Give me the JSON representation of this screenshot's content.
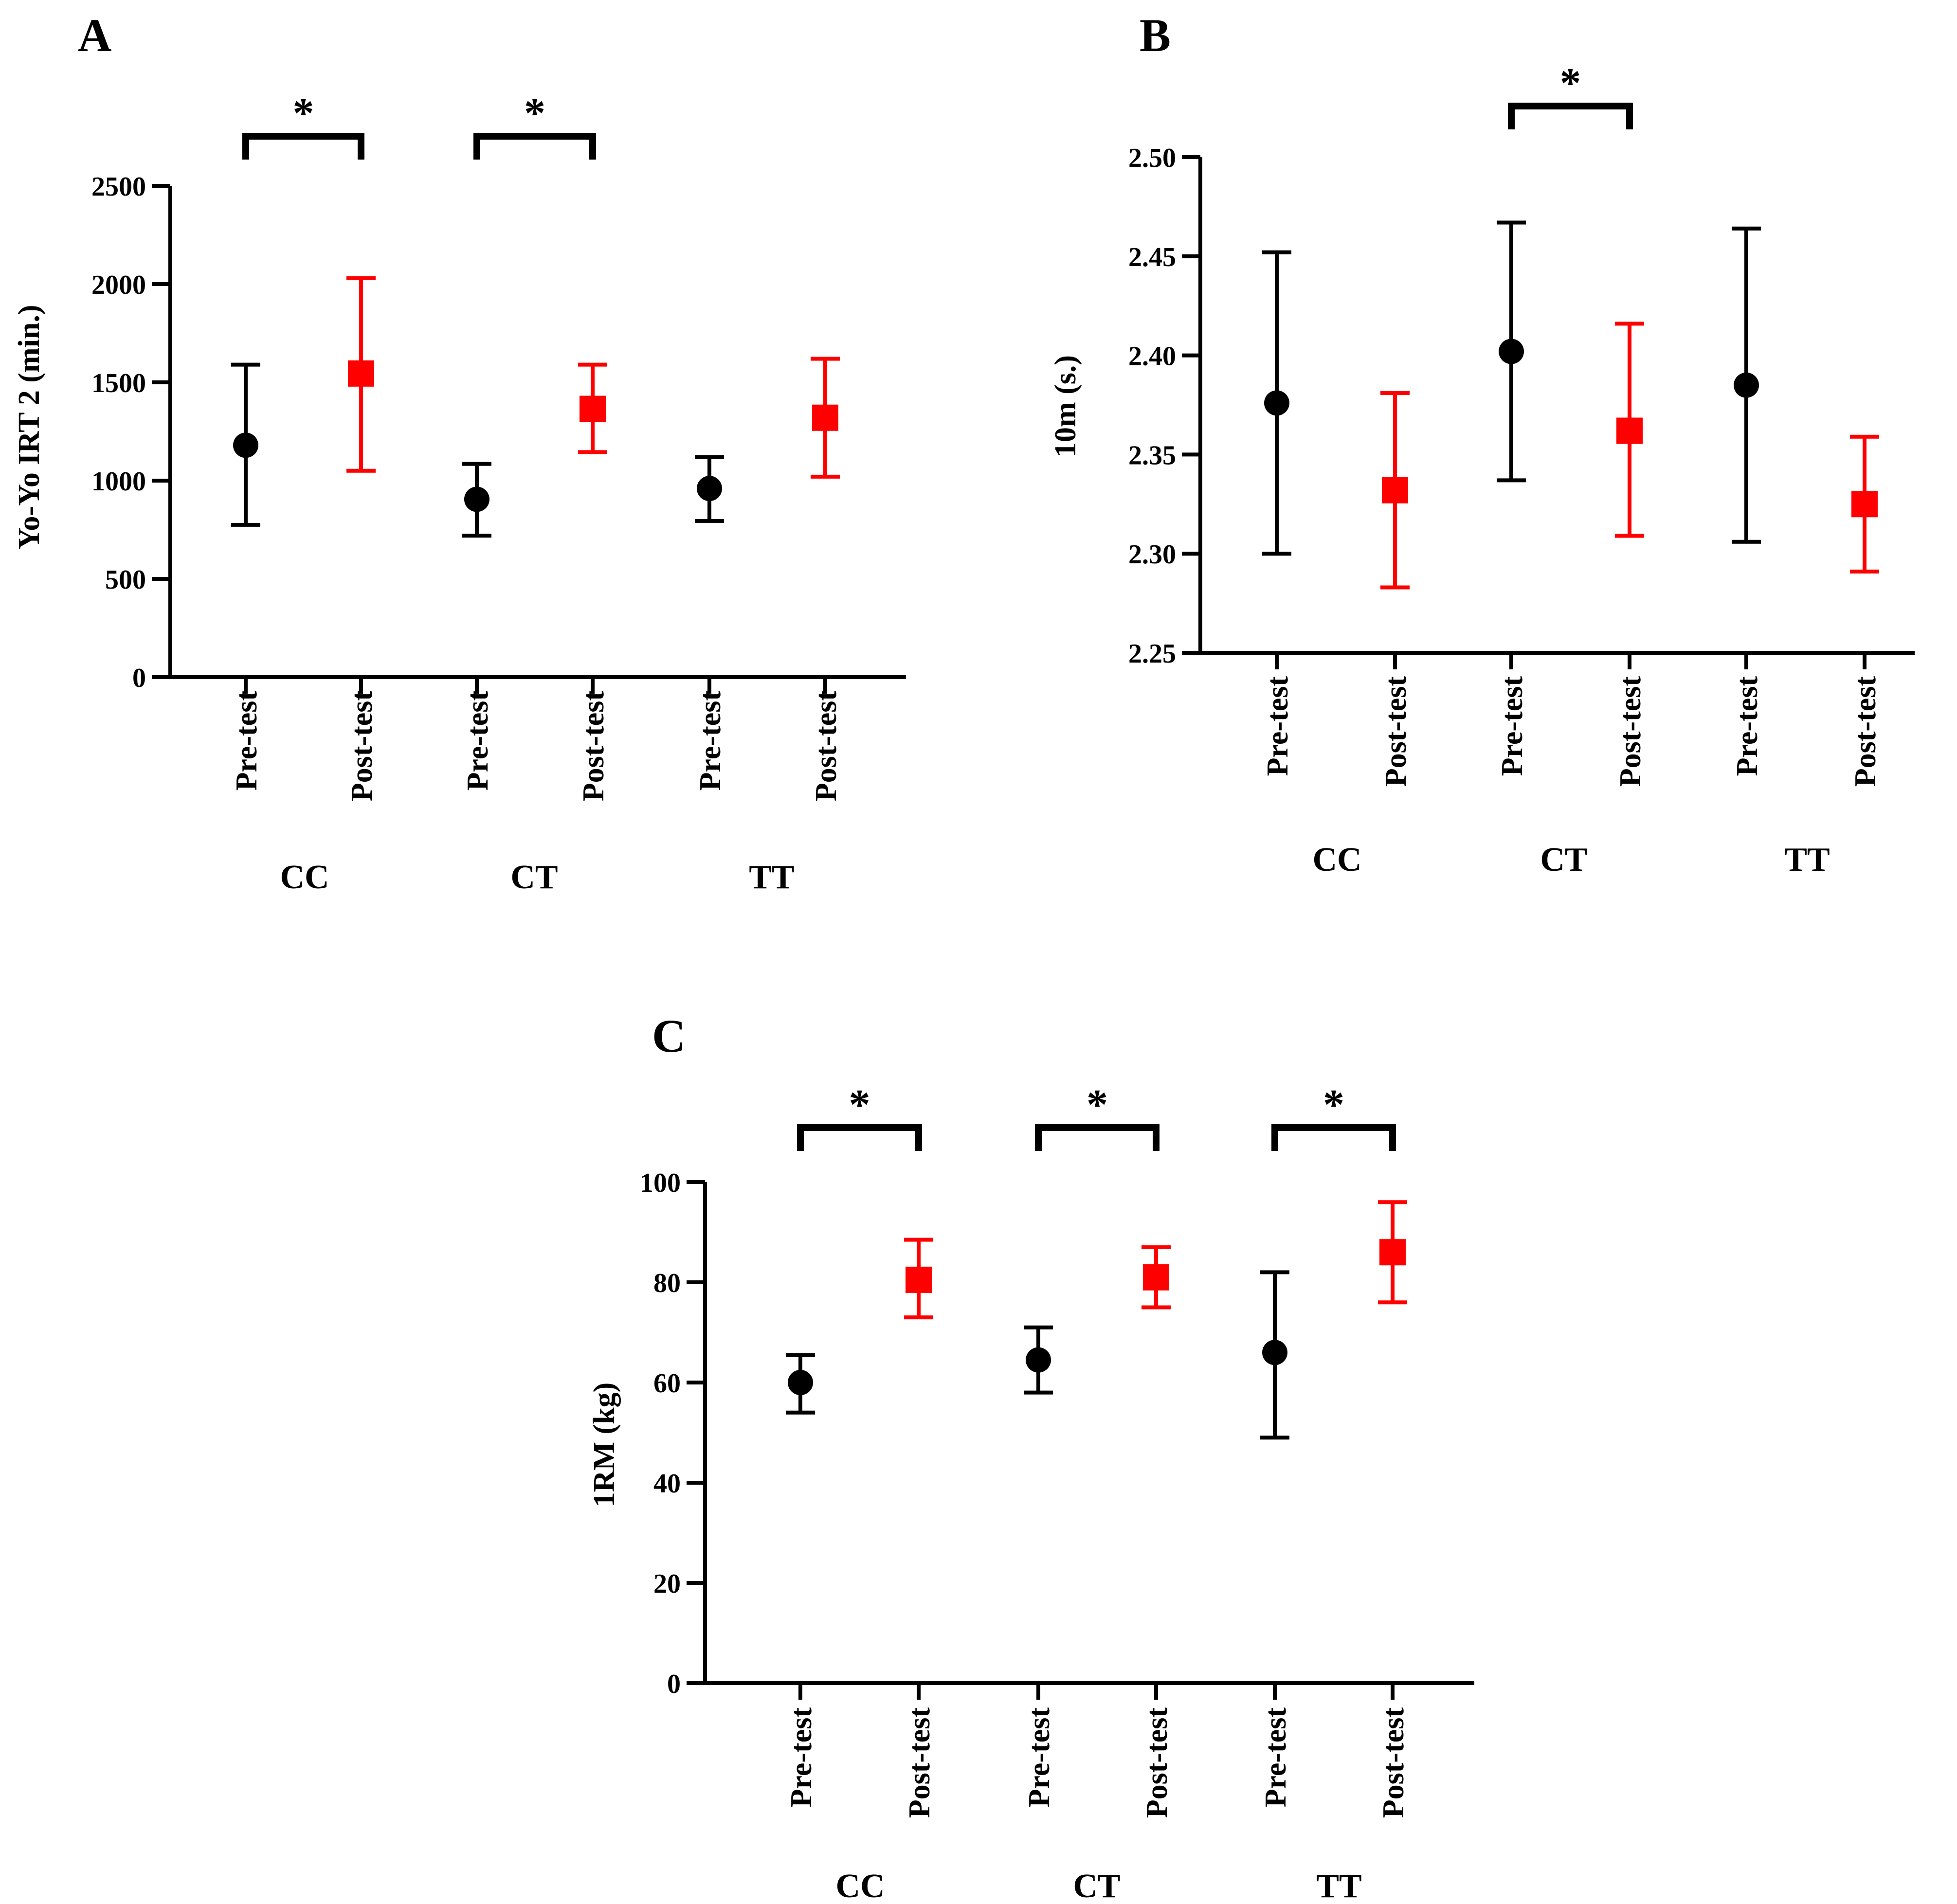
{
  "colors": {
    "pre": "#000000",
    "post": "#ff0000",
    "axis": "#000000"
  },
  "chart_data": [
    {
      "panel": "A",
      "type": "scatter",
      "ylabel": "Yo-Yo IRT 2 (min.)",
      "ylim": [
        0,
        2500
      ],
      "yticks": [
        0,
        500,
        1000,
        1500,
        2000,
        2500
      ],
      "ytick_labels": [
        "0",
        "500",
        "1000",
        "1500",
        "2000",
        "2500"
      ],
      "categories": [
        "Pre-test",
        "Post-test",
        "Pre-test",
        "Post-test",
        "Pre-test",
        "Post-test"
      ],
      "groups": [
        "CC",
        "CT",
        "TT"
      ],
      "points": [
        {
          "group": "CC",
          "phase": "pre",
          "mean": 1180,
          "lower": 775,
          "upper": 1590
        },
        {
          "group": "CC",
          "phase": "post",
          "mean": 1545,
          "lower": 1050,
          "upper": 2030
        },
        {
          "group": "CT",
          "phase": "pre",
          "mean": 905,
          "lower": 720,
          "upper": 1085
        },
        {
          "group": "CT",
          "phase": "post",
          "mean": 1365,
          "lower": 1145,
          "upper": 1590
        },
        {
          "group": "TT",
          "phase": "pre",
          "mean": 960,
          "lower": 795,
          "upper": 1120
        },
        {
          "group": "TT",
          "phase": "post",
          "mean": 1320,
          "lower": 1020,
          "upper": 1620
        }
      ],
      "significance": [
        {
          "from": 0,
          "to": 1,
          "label": "*"
        },
        {
          "from": 2,
          "to": 3,
          "label": "*"
        }
      ]
    },
    {
      "panel": "B",
      "type": "scatter",
      "ylabel": "10m (s.)",
      "ylim": [
        2.25,
        2.5
      ],
      "yticks": [
        2.25,
        2.3,
        2.35,
        2.4,
        2.45,
        2.5
      ],
      "ytick_labels": [
        "2.25",
        "2.30",
        "2.35",
        "2.40",
        "2.45",
        "2.50"
      ],
      "categories": [
        "Pre-test",
        "Post-test",
        "Pre-test",
        "Post-test",
        "Pre-test",
        "Post-test"
      ],
      "groups": [
        "CC",
        "CT",
        "TT"
      ],
      "points": [
        {
          "group": "CC",
          "phase": "pre",
          "mean": 2.376,
          "lower": 2.3,
          "upper": 2.452
        },
        {
          "group": "CC",
          "phase": "post",
          "mean": 2.332,
          "lower": 2.283,
          "upper": 2.381
        },
        {
          "group": "CT",
          "phase": "pre",
          "mean": 2.402,
          "lower": 2.337,
          "upper": 2.467
        },
        {
          "group": "CT",
          "phase": "post",
          "mean": 2.362,
          "lower": 2.309,
          "upper": 2.416
        },
        {
          "group": "TT",
          "phase": "pre",
          "mean": 2.385,
          "lower": 2.306,
          "upper": 2.464
        },
        {
          "group": "TT",
          "phase": "post",
          "mean": 2.325,
          "lower": 2.291,
          "upper": 2.359
        }
      ],
      "significance": [
        {
          "from": 2,
          "to": 3,
          "label": "*"
        }
      ]
    },
    {
      "panel": "C",
      "type": "scatter",
      "ylabel": "1RM (kg)",
      "ylim": [
        0,
        100
      ],
      "yticks": [
        0,
        20,
        40,
        60,
        80,
        100
      ],
      "ytick_labels": [
        "0",
        "20",
        "40",
        "60",
        "80",
        "100"
      ],
      "categories": [
        "Pre-test",
        "Post-test",
        "Pre-test",
        "Post-test",
        "Pre-test",
        "Post-test"
      ],
      "groups": [
        "CC",
        "CT",
        "TT"
      ],
      "points": [
        {
          "group": "CC",
          "phase": "pre",
          "mean": 60,
          "lower": 54,
          "upper": 65.5
        },
        {
          "group": "CC",
          "phase": "post",
          "mean": 80.5,
          "lower": 73,
          "upper": 88.5
        },
        {
          "group": "CT",
          "phase": "pre",
          "mean": 64.5,
          "lower": 58,
          "upper": 71
        },
        {
          "group": "CT",
          "phase": "post",
          "mean": 81,
          "lower": 75,
          "upper": 87
        },
        {
          "group": "TT",
          "phase": "pre",
          "mean": 66,
          "lower": 49,
          "upper": 82
        },
        {
          "group": "TT",
          "phase": "post",
          "mean": 86,
          "lower": 76,
          "upper": 96
        }
      ],
      "significance": [
        {
          "from": 0,
          "to": 1,
          "label": "*"
        },
        {
          "from": 2,
          "to": 3,
          "label": "*"
        },
        {
          "from": 4,
          "to": 5,
          "label": "*"
        }
      ]
    }
  ]
}
